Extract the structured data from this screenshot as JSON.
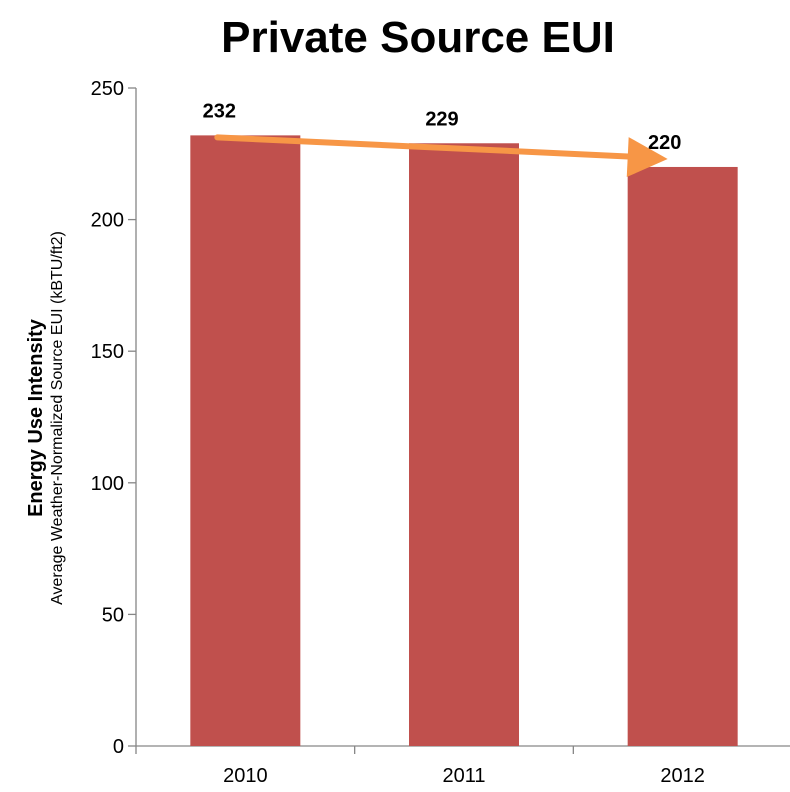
{
  "chart_data": {
    "type": "bar",
    "title": "Private Source EUI",
    "ylabel": "Energy Use Intensity",
    "ylabel_sub": "Average Weather-Normalized Source EUI (kBTU/ft2)",
    "xlabel": "",
    "categories": [
      "2010",
      "2011",
      "2012"
    ],
    "values": [
      232,
      229,
      220
    ],
    "data_labels": [
      "232",
      "229",
      "220"
    ],
    "ylim": [
      0,
      250
    ],
    "yticks": [
      0,
      50,
      100,
      150,
      200,
      250
    ],
    "grid": false,
    "legend": "none",
    "bar_color": "#c0504d",
    "trend_arrow": {
      "from_category": "2010",
      "to_category": "2012",
      "color": "#f79646"
    }
  }
}
